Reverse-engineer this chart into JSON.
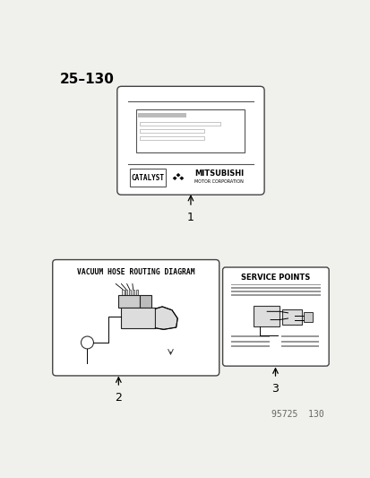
{
  "title": "25–130",
  "page_bg": "#f0f0ec",
  "footer_text": "95725  130",
  "label1_number": "1",
  "label2_number": "2",
  "label3_number": "3",
  "vacuum_hose_title": "VACUUM HOSE ROUTING DIAGRAM",
  "service_points_title": "SERVICE POINTS",
  "catalyst_text": "CATALYST",
  "mitsubishi_text": "MITSUBISHI",
  "motor_corp_text": "MOTOR CORPORATION"
}
